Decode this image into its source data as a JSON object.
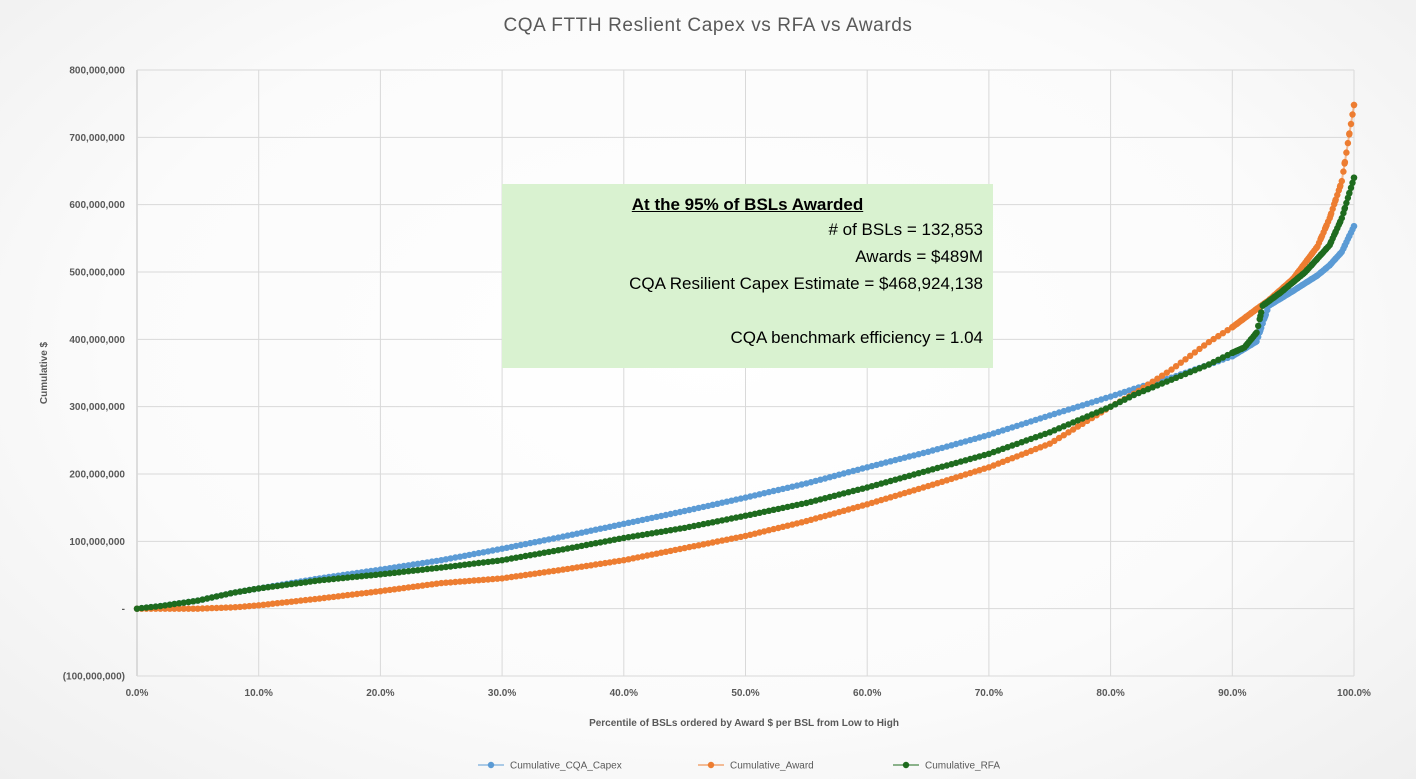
{
  "chart_data": {
    "type": "scatter",
    "title": "CQA FTTH Reslient Capex vs RFA vs Awards",
    "xlabel": "Percentile of BSLs ordered by Award $ per BSL from Low to High",
    "ylabel": "Cumulative $",
    "xlim": [
      0,
      1
    ],
    "ylim": [
      -100000000,
      800000000
    ],
    "x_ticks": [
      "0.0%",
      "10.0%",
      "20.0%",
      "30.0%",
      "40.0%",
      "50.0%",
      "60.0%",
      "70.0%",
      "80.0%",
      "90.0%",
      "100.0%"
    ],
    "y_ticks": [
      "800,000,000",
      "700,000,000",
      "600,000,000",
      "500,000,000",
      "400,000,000",
      "300,000,000",
      "200,000,000",
      "100,000,000",
      "-",
      "(100,000,000)"
    ],
    "grid": true,
    "legend_position": "bottom",
    "series": [
      {
        "name": "Cumulative_CQA_Capex",
        "color": "#5b9bd5",
        "x": [
          0,
          0.02,
          0.05,
          0.08,
          0.1,
          0.15,
          0.2,
          0.25,
          0.3,
          0.35,
          0.4,
          0.45,
          0.5,
          0.55,
          0.6,
          0.65,
          0.7,
          0.75,
          0.8,
          0.82,
          0.85,
          0.88,
          0.9,
          0.92,
          0.93,
          0.95,
          0.97,
          0.98,
          0.99,
          1.0
        ],
        "y": [
          0,
          4000000,
          12000000,
          24000000,
          30000000,
          45000000,
          58000000,
          72000000,
          89000000,
          107000000,
          126000000,
          145000000,
          165000000,
          186000000,
          210000000,
          233000000,
          258000000,
          287000000,
          315000000,
          327000000,
          343000000,
          362000000,
          375000000,
          397000000,
          450000000,
          472000000,
          495000000,
          510000000,
          530000000,
          568000000
        ]
      },
      {
        "name": "Cumulative_Award",
        "color": "#ed7d31",
        "x": [
          0,
          0.02,
          0.05,
          0.08,
          0.1,
          0.15,
          0.2,
          0.25,
          0.3,
          0.35,
          0.4,
          0.45,
          0.5,
          0.55,
          0.6,
          0.65,
          0.7,
          0.75,
          0.8,
          0.82,
          0.85,
          0.88,
          0.9,
          0.92,
          0.93,
          0.95,
          0.97,
          0.98,
          0.99,
          1.0
        ],
        "y": [
          0,
          0,
          0,
          2000000,
          5000000,
          15000000,
          26000000,
          38000000,
          45000000,
          58000000,
          72000000,
          90000000,
          108000000,
          130000000,
          155000000,
          182000000,
          210000000,
          245000000,
          300000000,
          320000000,
          355000000,
          395000000,
          418000000,
          445000000,
          458000000,
          490000000,
          538000000,
          580000000,
          635000000,
          748000000
        ]
      },
      {
        "name": "Cumulative_RFA",
        "color": "#1e6b1e",
        "x": [
          0,
          0.02,
          0.05,
          0.08,
          0.1,
          0.15,
          0.2,
          0.25,
          0.3,
          0.35,
          0.4,
          0.45,
          0.5,
          0.55,
          0.6,
          0.65,
          0.7,
          0.75,
          0.8,
          0.82,
          0.85,
          0.88,
          0.9,
          0.91,
          0.92,
          0.925,
          0.94,
          0.96,
          0.98,
          0.99,
          1.0
        ],
        "y": [
          0,
          4000000,
          12000000,
          24000000,
          30000000,
          42000000,
          51000000,
          61000000,
          72000000,
          88000000,
          105000000,
          120000000,
          138000000,
          157000000,
          180000000,
          205000000,
          230000000,
          262000000,
          300000000,
          318000000,
          340000000,
          362000000,
          380000000,
          388000000,
          410000000,
          450000000,
          470000000,
          500000000,
          540000000,
          580000000,
          640000000
        ]
      }
    ],
    "annotation": {
      "heading": "At the 95% of BSLs Awarded",
      "lines": [
        "# of BSLs = 132,853",
        "Awards = $489M",
        "CQA Resilient Capex Estimate = $468,924,138",
        "",
        "CQA benchmark efficiency = 1.04"
      ]
    }
  }
}
